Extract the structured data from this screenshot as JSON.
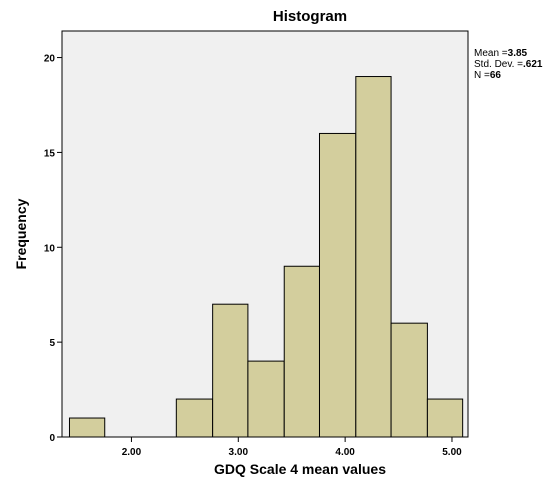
{
  "chart_data": {
    "type": "bar",
    "title": "Histogram",
    "xlabel": "GDQ Scale 4 mean values",
    "ylabel": "Frequency",
    "xlim": [
      1.35,
      5.15
    ],
    "ylim": [
      0,
      21.4
    ],
    "x_ticks": [
      {
        "value": 2.0,
        "label": "2.00"
      },
      {
        "value": 3.0,
        "label": "3.00"
      },
      {
        "value": 4.0,
        "label": "4.00"
      },
      {
        "value": 5.0,
        "label": "5.00"
      }
    ],
    "y_ticks": [
      {
        "value": 0,
        "label": "0"
      },
      {
        "value": 5,
        "label": "5"
      },
      {
        "value": 10,
        "label": "10"
      },
      {
        "value": 15,
        "label": "15"
      },
      {
        "value": 20,
        "label": "20"
      }
    ],
    "bins": [
      {
        "start": 1.42,
        "end": 1.75,
        "count": 1
      },
      {
        "start": 1.75,
        "end": 2.09,
        "count": 0
      },
      {
        "start": 2.09,
        "end": 2.42,
        "count": 0
      },
      {
        "start": 2.42,
        "end": 2.76,
        "count": 2
      },
      {
        "start": 2.76,
        "end": 3.09,
        "count": 7
      },
      {
        "start": 3.09,
        "end": 3.43,
        "count": 4
      },
      {
        "start": 3.43,
        "end": 3.76,
        "count": 9
      },
      {
        "start": 3.76,
        "end": 4.1,
        "count": 16
      },
      {
        "start": 4.1,
        "end": 4.43,
        "count": 19
      },
      {
        "start": 4.43,
        "end": 4.77,
        "count": 6
      },
      {
        "start": 4.77,
        "end": 5.1,
        "count": 2
      }
    ],
    "grid": false,
    "legend": "none",
    "colors": {
      "bar_fill": "#d3ce9d",
      "bar_stroke": "#000000",
      "plot_bg": "#f0f0f0"
    },
    "stats": {
      "mean_label": "Mean =",
      "mean_value": "3.85",
      "sd_label": "Std. Dev. =",
      "sd_value": ".621",
      "n_label": "N =",
      "n_value": "66"
    }
  }
}
